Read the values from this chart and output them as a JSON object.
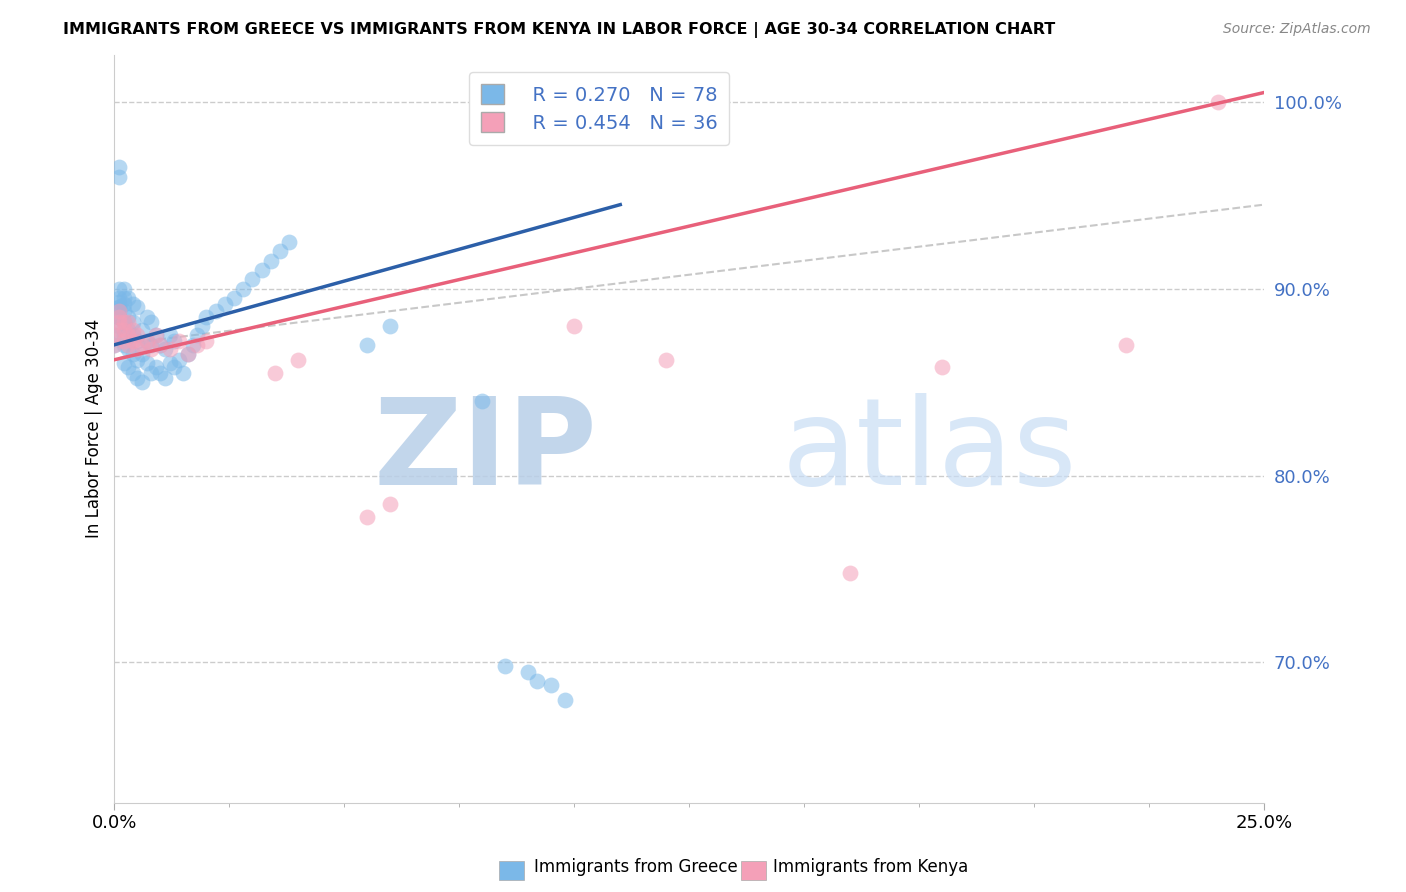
{
  "title": "IMMIGRANTS FROM GREECE VS IMMIGRANTS FROM KENYA IN LABOR FORCE | AGE 30-34 CORRELATION CHART",
  "source": "Source: ZipAtlas.com",
  "ylabel_label": "In Labor Force | Age 30-34",
  "legend_blue_r": "R = 0.270",
  "legend_blue_n": "N = 78",
  "legend_pink_r": "R = 0.454",
  "legend_pink_n": "N = 36",
  "legend_label_blue": "Immigrants from Greece",
  "legend_label_pink": "Immigrants from Kenya",
  "color_blue": "#7bb8e8",
  "color_pink": "#f4a0b8",
  "color_blue_line": "#2c5fa8",
  "color_pink_line": "#e8607a",
  "color_legend_text": "#4472C4",
  "watermark_zip": "ZIP",
  "watermark_atlas": "atlas",
  "watermark_color": "#c8ddf0",
  "xmin": 0.0,
  "xmax": 0.25,
  "ymin": 0.625,
  "ymax": 1.025,
  "blue_scatter_x": [
    0.0,
    0.0,
    0.001,
    0.001,
    0.001,
    0.001,
    0.001,
    0.001,
    0.001,
    0.001,
    0.001,
    0.001,
    0.001,
    0.002,
    0.002,
    0.002,
    0.002,
    0.002,
    0.002,
    0.002,
    0.002,
    0.003,
    0.003,
    0.003,
    0.003,
    0.003,
    0.004,
    0.004,
    0.004,
    0.004,
    0.004,
    0.005,
    0.005,
    0.005,
    0.005,
    0.006,
    0.006,
    0.006,
    0.007,
    0.007,
    0.007,
    0.008,
    0.008,
    0.008,
    0.009,
    0.009,
    0.01,
    0.01,
    0.011,
    0.011,
    0.012,
    0.012,
    0.013,
    0.013,
    0.014,
    0.015,
    0.016,
    0.017,
    0.018,
    0.019,
    0.02,
    0.022,
    0.024,
    0.026,
    0.028,
    0.03,
    0.032,
    0.034,
    0.036,
    0.038,
    0.055,
    0.06,
    0.08,
    0.085,
    0.09,
    0.092,
    0.095,
    0.098
  ],
  "blue_scatter_y": [
    0.87,
    0.875,
    0.88,
    0.885,
    0.885,
    0.888,
    0.89,
    0.89,
    0.893,
    0.895,
    0.9,
    0.96,
    0.965,
    0.86,
    0.87,
    0.875,
    0.882,
    0.888,
    0.892,
    0.895,
    0.9,
    0.858,
    0.868,
    0.878,
    0.885,
    0.895,
    0.855,
    0.865,
    0.875,
    0.882,
    0.892,
    0.852,
    0.862,
    0.872,
    0.89,
    0.85,
    0.865,
    0.878,
    0.86,
    0.872,
    0.885,
    0.855,
    0.87,
    0.882,
    0.858,
    0.875,
    0.855,
    0.87,
    0.852,
    0.868,
    0.86,
    0.875,
    0.858,
    0.872,
    0.862,
    0.855,
    0.865,
    0.87,
    0.875,
    0.88,
    0.885,
    0.888,
    0.892,
    0.895,
    0.9,
    0.905,
    0.91,
    0.915,
    0.92,
    0.925,
    0.87,
    0.88,
    0.84,
    0.698,
    0.695,
    0.69,
    0.688,
    0.68
  ],
  "pink_scatter_x": [
    0.0,
    0.0,
    0.001,
    0.001,
    0.001,
    0.001,
    0.002,
    0.002,
    0.002,
    0.003,
    0.003,
    0.003,
    0.004,
    0.004,
    0.005,
    0.005,
    0.006,
    0.007,
    0.008,
    0.009,
    0.01,
    0.012,
    0.014,
    0.016,
    0.018,
    0.02,
    0.035,
    0.04,
    0.055,
    0.06,
    0.1,
    0.12,
    0.16,
    0.18,
    0.22,
    0.24
  ],
  "pink_scatter_y": [
    0.87,
    0.875,
    0.878,
    0.882,
    0.885,
    0.888,
    0.872,
    0.878,
    0.882,
    0.87,
    0.875,
    0.882,
    0.872,
    0.878,
    0.868,
    0.875,
    0.87,
    0.872,
    0.868,
    0.875,
    0.87,
    0.868,
    0.872,
    0.865,
    0.87,
    0.872,
    0.855,
    0.862,
    0.778,
    0.785,
    0.88,
    0.862,
    0.748,
    0.858,
    0.87,
    1.0
  ],
  "blue_line_x": [
    0.0,
    0.11
  ],
  "blue_line_y": [
    0.87,
    0.945
  ],
  "pink_line_x": [
    0.0,
    0.25
  ],
  "pink_line_y": [
    0.862,
    1.005
  ],
  "dashed_line_x": [
    0.0,
    0.25
  ],
  "dashed_line_y": [
    0.87,
    0.945
  ],
  "yticks": [
    0.7,
    0.8,
    0.9,
    1.0
  ],
  "ytick_labels": [
    "70.0%",
    "80.0%",
    "90.0%",
    "100.0%"
  ],
  "xticks": [
    0.0,
    0.25
  ],
  "xtick_labels": [
    "0.0%",
    "25.0%"
  ]
}
